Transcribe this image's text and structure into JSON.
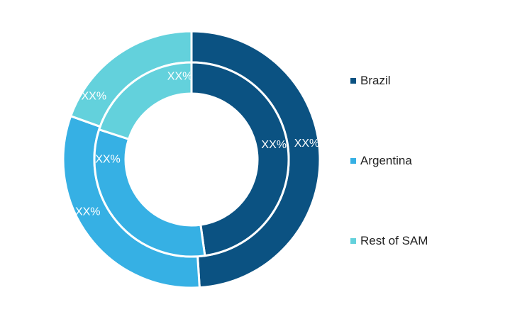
{
  "chart_data": {
    "type": "pie",
    "variant": "double-donut",
    "categories": [
      "Brazil",
      "Argentina",
      "Rest of SAM"
    ],
    "colors": [
      "#0b5282",
      "#36b0e4",
      "#63d1dc"
    ],
    "series": [
      {
        "ring": "outer",
        "values": [
          49.0,
          31.5,
          19.5
        ],
        "labels": [
          "XX%",
          "XX%",
          "XX%"
        ]
      },
      {
        "ring": "inner",
        "values": [
          47.8,
          32.2,
          20.0
        ],
        "labels": [
          "XX%",
          "XX%",
          "XX%"
        ]
      }
    ],
    "title": "",
    "legend_position": "right"
  }
}
